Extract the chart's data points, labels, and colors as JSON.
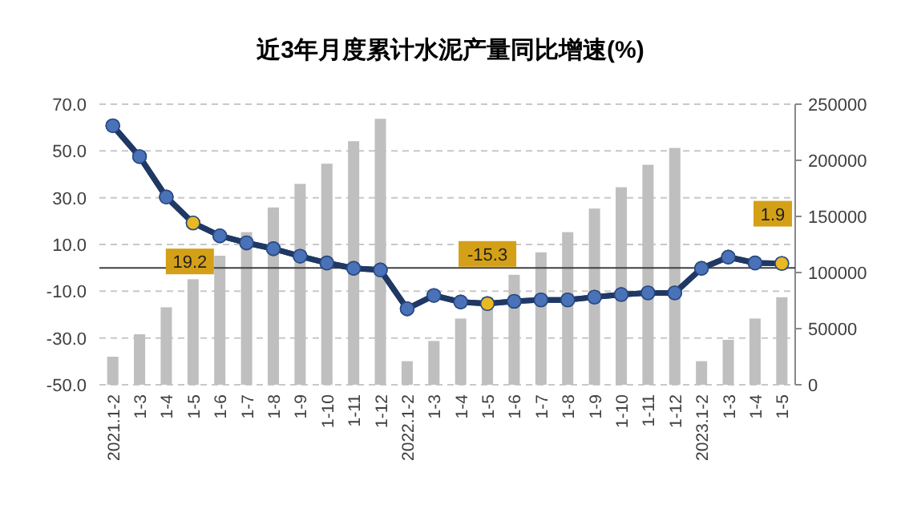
{
  "chart_data": {
    "type": "bar",
    "title": "近3年月度累计水泥产量同比增速(%)",
    "categories": [
      "2021.1-2",
      "1-3",
      "1-4",
      "1-5",
      "1-6",
      "1-7",
      "1-8",
      "1-9",
      "1-10",
      "1-11",
      "1-12",
      "2022.1-2",
      "1-3",
      "1-4",
      "1-5",
      "1-6",
      "1-7",
      "1-8",
      "1-9",
      "1-10",
      "1-11",
      "1-12",
      "2023.1-2",
      "1-3",
      "1-4",
      "1-5"
    ],
    "series": [
      {
        "axis": "y2",
        "color": "#bfbfbf",
        "values": [
          25000,
          45000,
          69000,
          94000,
          115000,
          136000,
          158000,
          179000,
          197000,
          217000,
          237000,
          21000,
          39000,
          59000,
          78000,
          98000,
          118000,
          136000,
          157000,
          176000,
          196000,
          211000,
          21000,
          40000,
          59000,
          78000
        ]
      },
      {
        "type": "line",
        "axis": "y",
        "color": "#1f3864",
        "marker": "circle",
        "line_style": "solid",
        "colors": [
          "#4a72b8",
          "#4a72b8",
          "#4a72b8",
          "#e8b923",
          "#4a72b8",
          "#4a72b8",
          "#4a72b8",
          "#4a72b8",
          "#4a72b8",
          "#4a72b8",
          "#4a72b8",
          "#4a72b8",
          "#4a72b8",
          "#4a72b8",
          "#e8b923",
          "#4a72b8",
          "#4a72b8",
          "#4a72b8",
          "#4a72b8",
          "#4a72b8",
          "#4a72b8",
          "#4a72b8",
          "#4a72b8",
          "#4a72b8",
          "#4a72b8",
          "#e8b923"
        ],
        "values": [
          60.8,
          47.6,
          30.3,
          19.2,
          13.7,
          10.7,
          8.2,
          5.0,
          2.1,
          -0.2,
          -0.9,
          -17.5,
          -11.8,
          -14.6,
          -15.3,
          -14.3,
          -13.7,
          -13.7,
          -12.5,
          -11.4,
          -10.7,
          -10.7,
          -0.2,
          4.6,
          2.1,
          1.9
        ],
        "value_labels": [
          null,
          null,
          null,
          "19.2",
          null,
          null,
          null,
          null,
          null,
          null,
          null,
          null,
          null,
          null,
          "-15.3",
          null,
          null,
          null,
          null,
          null,
          null,
          null,
          null,
          null,
          null,
          "1.9"
        ]
      }
    ],
    "ylim": [
      -50,
      70
    ],
    "yticks": [
      {
        "value": -50,
        "label": "-50.0"
      },
      {
        "value": -30,
        "label": "-30.0"
      },
      {
        "value": -10,
        "label": "-10.0"
      },
      {
        "value": 10,
        "label": "10.0"
      },
      {
        "value": 30,
        "label": "30.0"
      },
      {
        "value": 50,
        "label": "50.0"
      },
      {
        "value": 70,
        "label": "70.0"
      }
    ],
    "y2lim": [
      0,
      250000
    ],
    "y2ticks": [
      0,
      50000,
      100000,
      150000,
      200000,
      250000
    ],
    "grid": "y",
    "ref_lines": [
      {
        "axis": "y",
        "value": 0,
        "color": "#404040",
        "line_style": "solid"
      }
    ]
  }
}
